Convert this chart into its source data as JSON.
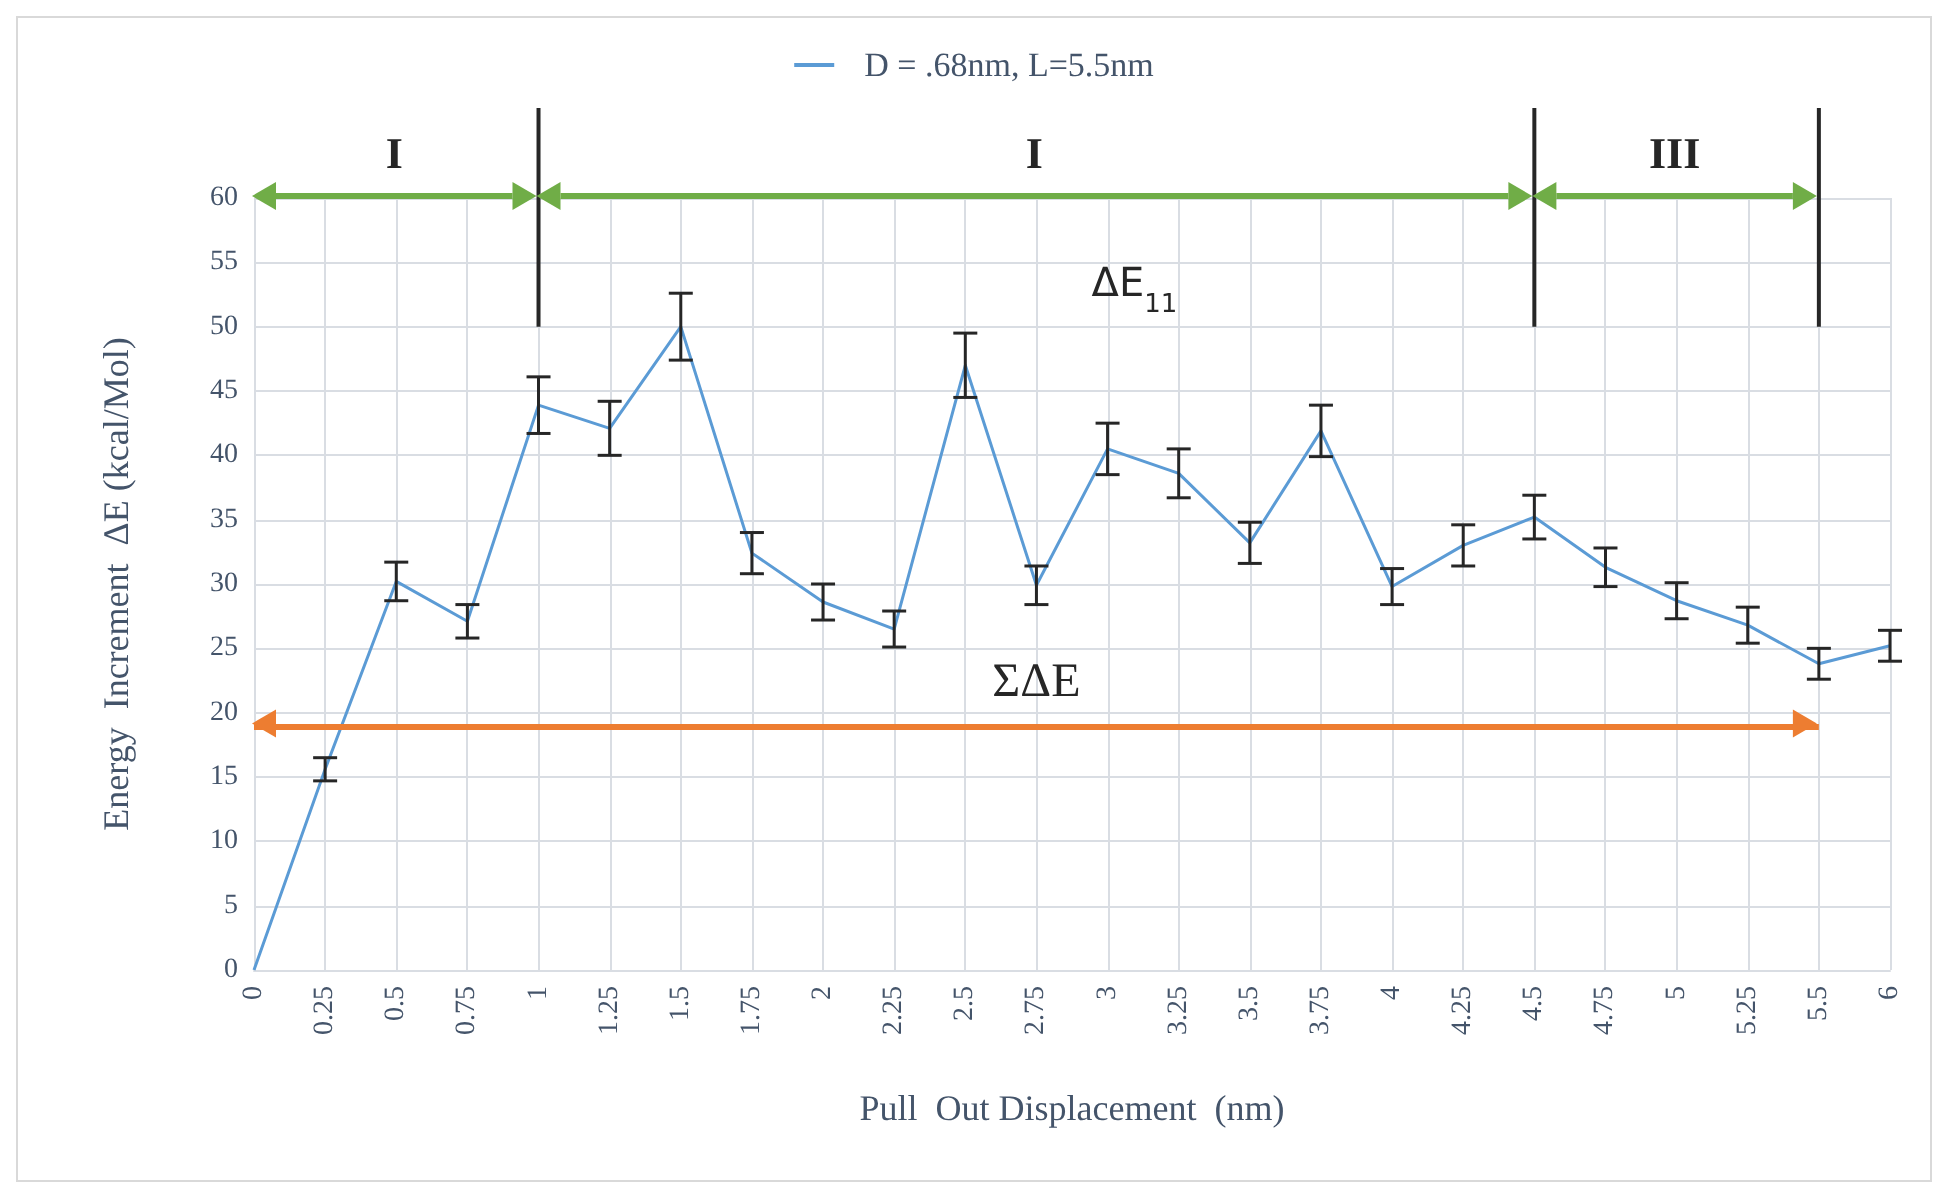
{
  "chart_data": {
    "type": "line",
    "xlabel": "Pull  Out Displacement  (nm)",
    "ylabel": "Energy  Increment  ΔE (kcal/Mol)",
    "categories": [
      "0",
      "0.25",
      "0.5",
      "0.75",
      "1",
      "1.25",
      "1.5",
      "1.75",
      "2",
      "2.25",
      "2.5",
      "2.75",
      "3",
      "3.25",
      "3.5",
      "3.75",
      "4",
      "4.25",
      "4.5",
      "4.75",
      "5",
      "5.25",
      "5.5",
      "6"
    ],
    "series": [
      {
        "name": "D = .68nm, L=5.5nm",
        "color": "#5b9bd5",
        "values": [
          0,
          15.6,
          30.2,
          27.1,
          43.9,
          42.1,
          50,
          32.4,
          28.6,
          26.5,
          47,
          29.9,
          40.5,
          38.6,
          33.2,
          41.9,
          29.8,
          33,
          35.2,
          31.3,
          28.7,
          26.8,
          23.8,
          25.2
        ],
        "errors": [
          null,
          0.9,
          1.5,
          1.3,
          2.2,
          2.1,
          2.6,
          1.6,
          1.4,
          1.4,
          2.5,
          1.5,
          2,
          1.9,
          1.6,
          2,
          1.4,
          1.6,
          1.7,
          1.5,
          1.4,
          1.4,
          1.2,
          1.2
        ]
      }
    ],
    "ylim": [
      0,
      60
    ],
    "yticks": [
      0,
      5,
      10,
      15,
      20,
      25,
      30,
      35,
      40,
      45,
      50,
      55,
      60
    ],
    "grid": true,
    "legend": "top",
    "marker": "none",
    "line_style": "solid",
    "ref_lines": [
      {
        "axis": "x",
        "value": "1",
        "label": null,
        "color": "#262626"
      },
      {
        "axis": "x",
        "value": "4.5",
        "label": null,
        "color": "#262626"
      },
      {
        "axis": "x",
        "value": "5.5",
        "label": null,
        "color": "#262626"
      },
      {
        "axis": "y",
        "value": 19,
        "label": "ΣΔE",
        "color": "#ed7d31"
      }
    ],
    "annotations": [
      "I",
      "I",
      "III",
      "ΔE$_{11}$"
    ]
  }
}
